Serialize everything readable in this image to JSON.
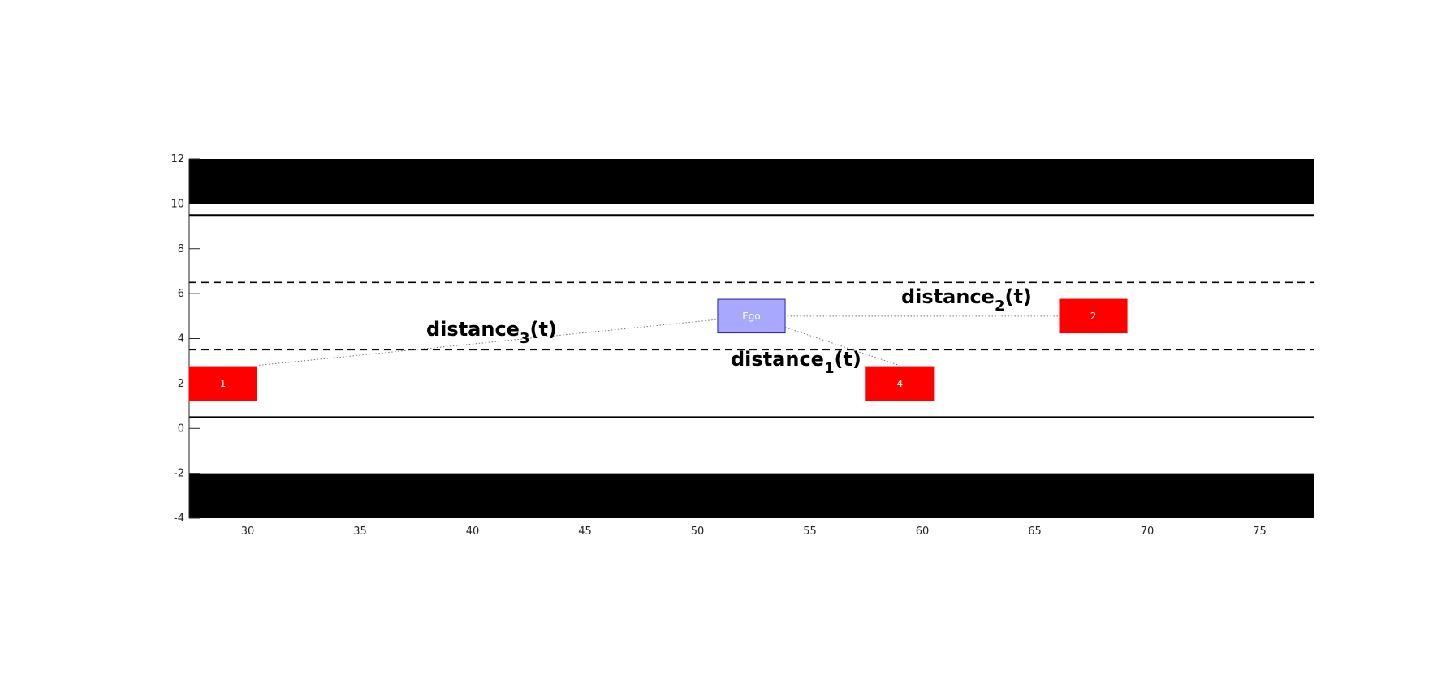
{
  "chart_data": {
    "type": "scatter",
    "xlim": [
      27.4,
      77.4
    ],
    "ylim": [
      -4,
      12
    ],
    "xticks": [
      "30",
      "35",
      "40",
      "45",
      "50",
      "55",
      "60",
      "65",
      "70",
      "75"
    ],
    "yticks": [
      "12",
      "10",
      "8",
      "6",
      "4",
      "2",
      "0",
      "-2",
      "-4"
    ],
    "grid": false,
    "road": {
      "barriers": [
        {
          "y": [
            10,
            12
          ]
        },
        {
          "y": [
            -4,
            -2
          ]
        }
      ],
      "solid_lines": [
        9.5,
        0.5
      ],
      "dashed_lines": [
        6.5,
        3.5
      ]
    },
    "vehicles": [
      {
        "label": "Ego",
        "x": 52.4,
        "y": 5.0,
        "length": 3.0,
        "width": 1.5,
        "color": "#a8a8ff",
        "edge": "#2222aa"
      },
      {
        "label": "1",
        "x": 28.9,
        "y": 2.0,
        "length": 3.0,
        "width": 1.5,
        "color": "#ff0000",
        "edge": "#ff0000"
      },
      {
        "label": "2",
        "x": 67.6,
        "y": 5.0,
        "length": 3.0,
        "width": 1.5,
        "color": "#ff0000",
        "edge": "#ff0000"
      },
      {
        "label": "4",
        "x": 59.0,
        "y": 2.0,
        "length": 3.0,
        "width": 1.5,
        "color": "#ff0000",
        "edge": "#ff0000"
      }
    ],
    "distances": [
      {
        "base": "distance",
        "sub": "1",
        "suffix": "(t)",
        "to": "4"
      },
      {
        "base": "distance",
        "sub": "2",
        "suffix": "(t)",
        "to": "2"
      },
      {
        "base": "distance",
        "sub": "3",
        "suffix": "(t)",
        "to": "1"
      }
    ]
  }
}
